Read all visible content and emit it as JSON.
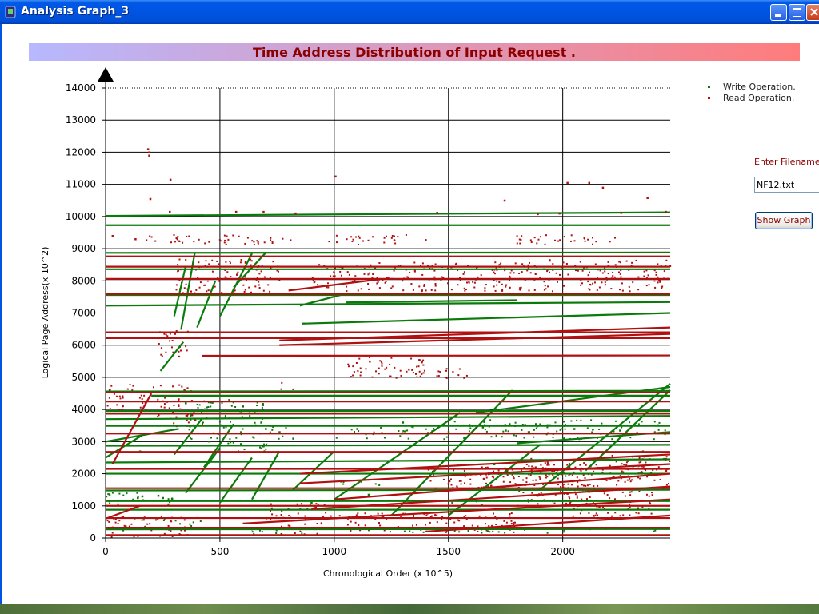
{
  "window": {
    "title": "Analysis Graph_3",
    "colors": {
      "titlebar": "#0054e3",
      "close": "#c13a1b"
    }
  },
  "banner": {
    "title": "Time Address Distribution of Input Request ."
  },
  "legend": {
    "items": [
      {
        "label": "Write Operation.",
        "color": "#0a7a0a"
      },
      {
        "label": "Read Operation.",
        "color": "#b01010"
      }
    ]
  },
  "file_panel": {
    "label": "Enter Filename:-",
    "filename_value": "NF12.txt",
    "show_button": "Show Graph"
  },
  "chart_data": {
    "type": "scatter",
    "xlabel": "Chronological Order (x 10^5)",
    "ylabel": "Logical Page Address(x 10^2)",
    "xlim": [
      0,
      2470
    ],
    "ylim": [
      0,
      14000
    ],
    "x_ticks": [
      0,
      500,
      1000,
      1500,
      2000
    ],
    "y_ticks": [
      0,
      1000,
      2000,
      3000,
      4000,
      5000,
      6000,
      7000,
      8000,
      9000,
      10000,
      11000,
      12000,
      13000,
      14000
    ],
    "grid": true,
    "legend_position": "top-right",
    "series": [
      {
        "name": "Write Operation.",
        "color": "#0a7a0a",
        "horizontal_bands": [
          [
            0,
            2470,
            10020,
            10130
          ],
          [
            0,
            2470,
            9730,
            9730
          ],
          [
            0,
            2470,
            8870,
            8880
          ],
          [
            0,
            2470,
            8360,
            8360
          ],
          [
            0,
            2470,
            7560,
            7560
          ],
          [
            0,
            2470,
            7230,
            7340
          ],
          [
            0,
            2470,
            4560,
            4580
          ],
          [
            0,
            2470,
            3700,
            3800
          ],
          [
            0,
            2470,
            3490,
            3490
          ],
          [
            0,
            2470,
            2870,
            2900
          ],
          [
            0,
            2470,
            2350,
            2450
          ],
          [
            0,
            2470,
            1480,
            1500
          ],
          [
            0,
            2470,
            1150,
            1150
          ],
          [
            0,
            2470,
            880,
            880
          ],
          [
            0,
            2470,
            270,
            280
          ],
          [
            860,
            2470,
            6670,
            7000
          ],
          [
            200,
            2470,
            4430,
            4430
          ],
          [
            0,
            2470,
            3950,
            3950
          ],
          [
            0,
            2470,
            2000,
            2000
          ]
        ],
        "diagonals": [
          [
            330,
            6480,
            390,
            8870
          ],
          [
            300,
            6900,
            350,
            8450
          ],
          [
            240,
            5200,
            340,
            6100
          ],
          [
            400,
            6550,
            480,
            8000
          ],
          [
            500,
            6900,
            640,
            8850
          ],
          [
            560,
            7800,
            700,
            8870
          ],
          [
            300,
            2600,
            420,
            3700
          ],
          [
            430,
            2200,
            560,
            3550
          ],
          [
            350,
            1400,
            500,
            2800
          ],
          [
            500,
            1100,
            640,
            2500
          ],
          [
            640,
            1200,
            760,
            2700
          ],
          [
            820,
            1500,
            1000,
            2700
          ],
          [
            1000,
            1200,
            1550,
            3900
          ],
          [
            1550,
            2900,
            1780,
            4600
          ],
          [
            1250,
            700,
            1630,
            3500
          ],
          [
            1500,
            700,
            1900,
            2900
          ],
          [
            1900,
            1500,
            2470,
            4800
          ],
          [
            2100,
            2100,
            2470,
            4600
          ],
          [
            0,
            3000,
            320,
            3400
          ],
          [
            0,
            2500,
            160,
            3200
          ],
          [
            1620,
            3900,
            2470,
            4700
          ],
          [
            1800,
            2950,
            2470,
            3300
          ],
          [
            850,
            7230,
            1050,
            7600
          ],
          [
            1050,
            7330,
            1800,
            7400
          ]
        ],
        "scatter_points": [
          [
            120,
            1200
          ],
          [
            140,
            1250
          ],
          [
            160,
            1300
          ],
          [
            230,
            1320
          ],
          [
            250,
            1250
          ],
          [
            290,
            1230
          ],
          [
            700,
            3400
          ],
          [
            720,
            3500
          ],
          [
            680,
            3600
          ],
          [
            760,
            3300
          ],
          [
            820,
            3100
          ],
          [
            600,
            4100
          ],
          [
            540,
            4300
          ],
          [
            1100,
            3400
          ],
          [
            1300,
            3600
          ],
          [
            1500,
            3300
          ],
          [
            1650,
            3450
          ],
          [
            1750,
            3350
          ],
          [
            1850,
            3300
          ],
          [
            2050,
            3400
          ],
          [
            2250,
            3350
          ],
          [
            420,
            4000
          ],
          [
            350,
            4200
          ],
          [
            900,
            1100
          ],
          [
            1150,
            1350
          ],
          [
            150,
            2700
          ],
          [
            2350,
            2700
          ],
          [
            1700,
            2300
          ]
        ]
      },
      {
        "name": "Read Operation.",
        "color": "#b01010",
        "horizontal_bands": [
          [
            0,
            2470,
            8760,
            8760
          ],
          [
            0,
            2470,
            8440,
            8440
          ],
          [
            0,
            2470,
            8060,
            8060
          ],
          [
            0,
            2470,
            7590,
            7590
          ],
          [
            0,
            2470,
            6220,
            6220
          ],
          [
            0,
            2470,
            6400,
            6400
          ],
          [
            0,
            2470,
            4530,
            4530
          ],
          [
            0,
            2470,
            4250,
            4250
          ],
          [
            0,
            2470,
            3870,
            3870
          ],
          [
            0,
            2470,
            3250,
            3250
          ],
          [
            0,
            2470,
            2680,
            2680
          ],
          [
            0,
            2470,
            2150,
            2150
          ],
          [
            0,
            2470,
            1550,
            1550
          ],
          [
            0,
            2470,
            1000,
            1000
          ],
          [
            0,
            2470,
            620,
            620
          ],
          [
            0,
            2470,
            320,
            320
          ],
          [
            0,
            2470,
            90,
            90
          ],
          [
            420,
            2470,
            5670,
            5680
          ]
        ],
        "diagonals": [
          [
            30,
            2300,
            200,
            4500
          ],
          [
            760,
            6150,
            2470,
            6550
          ],
          [
            760,
            6000,
            2470,
            6350
          ],
          [
            800,
            7700,
            1200,
            8050
          ],
          [
            850,
            2000,
            2470,
            2600
          ],
          [
            850,
            1700,
            2470,
            2300
          ],
          [
            1000,
            1200,
            2470,
            2000
          ],
          [
            900,
            900,
            2470,
            1600
          ],
          [
            600,
            450,
            2470,
            1200
          ],
          [
            1400,
            200,
            2470,
            700
          ],
          [
            0,
            600,
            150,
            1000
          ]
        ],
        "scatter_points": [
          [
            190,
            12000
          ],
          [
            185,
            12100
          ],
          [
            190,
            11900
          ],
          [
            283,
            11150
          ],
          [
            1005,
            11250
          ],
          [
            2020,
            11050
          ],
          [
            2115,
            11050
          ],
          [
            2175,
            10900
          ],
          [
            2370,
            10580
          ],
          [
            1745,
            10500
          ],
          [
            280,
            10150
          ],
          [
            570,
            10150
          ],
          [
            690,
            10150
          ],
          [
            830,
            10100
          ],
          [
            1450,
            10120
          ],
          [
            1890,
            10080
          ],
          [
            1985,
            10100
          ],
          [
            2255,
            10120
          ],
          [
            195,
            10550
          ],
          [
            30,
            9400
          ],
          [
            130,
            9300
          ],
          [
            2450,
            10150
          ]
        ]
      }
    ],
    "read_clusters": [
      [
        150,
        9150,
        380,
        9450
      ],
      [
        300,
        9150,
        820,
        9450
      ],
      [
        970,
        9150,
        1400,
        9450
      ],
      [
        1750,
        9150,
        2240,
        9450
      ],
      [
        300,
        7600,
        760,
        8700
      ],
      [
        900,
        7700,
        1800,
        8600
      ],
      [
        1800,
        7700,
        2470,
        8700
      ],
      [
        230,
        5600,
        360,
        6500
      ],
      [
        1050,
        5000,
        1400,
        5700
      ],
      [
        1300,
        5000,
        1600,
        5300
      ],
      [
        0,
        4000,
        380,
        4800
      ],
      [
        760,
        4600,
        820,
        4900
      ],
      [
        200,
        3500,
        420,
        4000
      ],
      [
        1800,
        1000,
        2150,
        2500
      ],
      [
        2000,
        700,
        2400,
        1500
      ],
      [
        2200,
        1800,
        2470,
        2600
      ],
      [
        1650,
        1500,
        2470,
        2300
      ],
      [
        700,
        600,
        1000,
        1100
      ],
      [
        0,
        50,
        360,
        700
      ],
      [
        1000,
        200,
        1800,
        800
      ],
      [
        1400,
        1500,
        1700,
        2300
      ],
      [
        750,
        100,
        950,
        500
      ]
    ],
    "write_clusters": [
      [
        360,
        2700,
        700,
        4300
      ],
      [
        1000,
        3100,
        1500,
        3500
      ],
      [
        1500,
        3100,
        2470,
        3700
      ],
      [
        0,
        1050,
        300,
        1450
      ],
      [
        50,
        250,
        450,
        650
      ],
      [
        700,
        3100,
        800,
        3500
      ],
      [
        1000,
        1600,
        1200,
        1800
      ],
      [
        1500,
        1000,
        1700,
        1200
      ],
      [
        600,
        100,
        900,
        300
      ],
      [
        1100,
        180,
        2470,
        320
      ]
    ]
  }
}
